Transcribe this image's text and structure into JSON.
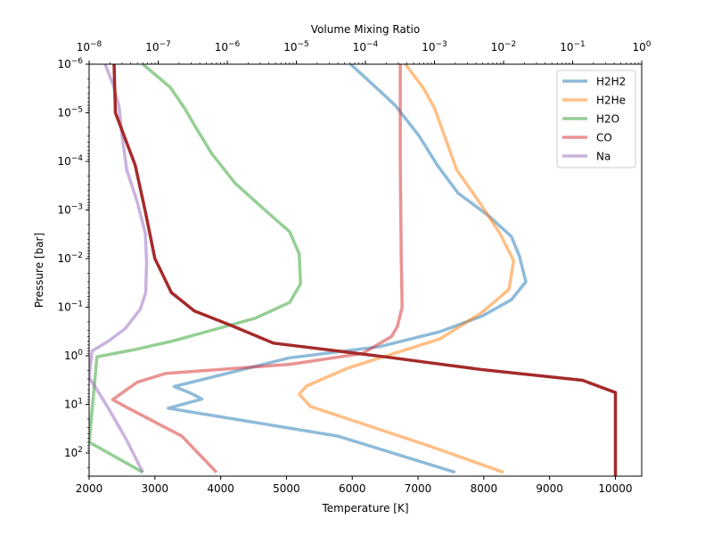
{
  "chart_data": {
    "type": "line",
    "title": "",
    "bottom_axis": {
      "label": "Temperature [K]",
      "range": [
        2000,
        10400
      ],
      "ticks": [
        2000,
        3000,
        4000,
        5000,
        6000,
        7000,
        8000,
        9000,
        10000
      ],
      "tick_labels": [
        "2000",
        "3000",
        "4000",
        "5000",
        "6000",
        "7000",
        "8000",
        "9000",
        "10000"
      ]
    },
    "top_axis": {
      "label": "Volume Mixing Ratio",
      "scale": "log",
      "range": [
        1e-08,
        1
      ],
      "ticks": [
        1e-08,
        1e-07,
        1e-06,
        1e-05,
        0.0001,
        0.001,
        0.01,
        0.1,
        1
      ],
      "tick_labels": [
        {
          "base": "10",
          "exp": "−8"
        },
        {
          "base": "10",
          "exp": "−7"
        },
        {
          "base": "10",
          "exp": "−6"
        },
        {
          "base": "10",
          "exp": "−5"
        },
        {
          "base": "10",
          "exp": "−4"
        },
        {
          "base": "10",
          "exp": "−3"
        },
        {
          "base": "10",
          "exp": "−2"
        },
        {
          "base": "10",
          "exp": "−1"
        },
        {
          "base": "10",
          "exp": "0"
        }
      ]
    },
    "y_axis": {
      "label": "Pressure [bar]",
      "scale": "log",
      "inverted": true,
      "range": [
        1e-06,
        300
      ],
      "ticks": [
        1e-06,
        1e-05,
        0.0001,
        0.001,
        0.01,
        0.1,
        1,
        10,
        100
      ],
      "tick_labels": [
        {
          "base": "10",
          "exp": "−6"
        },
        {
          "base": "10",
          "exp": "−5"
        },
        {
          "base": "10",
          "exp": "−4"
        },
        {
          "base": "10",
          "exp": "−3"
        },
        {
          "base": "10",
          "exp": "−2"
        },
        {
          "base": "10",
          "exp": "−1"
        },
        {
          "base": "10",
          "exp": "0"
        },
        {
          "base": "10",
          "exp": "1"
        },
        {
          "base": "10",
          "exp": "2"
        }
      ]
    },
    "grid": false,
    "legend_placement": "top-right",
    "series": [
      {
        "name": "H2H2",
        "color": "#1f77b4",
        "opacity": 0.5,
        "axis": "top",
        "points": [
          [
            6.1e-05,
            1e-06
          ],
          [
            0.00016,
            3.5e-06
          ],
          [
            0.00027,
            7e-06
          ],
          [
            0.0006,
            3e-05
          ],
          [
            0.0011,
            0.00012
          ],
          [
            0.0022,
            0.00045
          ],
          [
            0.006,
            0.0013
          ],
          [
            0.013,
            0.0035
          ],
          [
            0.017,
            0.009
          ],
          [
            0.021,
            0.03
          ],
          [
            0.013,
            0.07
          ],
          [
            0.005,
            0.15
          ],
          [
            0.0012,
            0.32
          ],
          [
            0.00016,
            0.65
          ],
          [
            8e-06,
            1.1
          ],
          [
            1.7e-07,
            4.3
          ],
          [
            2.9e-07,
            5.8
          ],
          [
            4.3e-07,
            7.8
          ],
          [
            1.4e-07,
            12
          ],
          [
            4e-05,
            45
          ],
          [
            0.002,
            250
          ]
        ]
      },
      {
        "name": "H2He",
        "color": "#ff7f0e",
        "opacity": 0.5,
        "axis": "top",
        "points": [
          [
            0.00038,
            1e-06
          ],
          [
            0.0007,
            3.2e-06
          ],
          [
            0.001,
            8e-06
          ],
          [
            0.0014,
            3e-05
          ],
          [
            0.0021,
            0.00015
          ],
          [
            0.0045,
            0.0007
          ],
          [
            0.0088,
            0.003
          ],
          [
            0.014,
            0.011
          ],
          [
            0.012,
            0.043
          ],
          [
            0.0048,
            0.13
          ],
          [
            0.0012,
            0.45
          ],
          [
            5.5e-05,
            1.8
          ],
          [
            1.4e-05,
            4.2
          ],
          [
            1.1e-05,
            6.2
          ],
          [
            1.6e-05,
            11
          ],
          [
            0.0008,
            70
          ],
          [
            0.01,
            250
          ]
        ]
      },
      {
        "name": "H2O",
        "color": "#2ca02c",
        "opacity": 0.5,
        "axis": "top",
        "points": [
          [
            6e-08,
            1e-06
          ],
          [
            1.5e-07,
            3e-06
          ],
          [
            2.4e-07,
            8e-06
          ],
          [
            3.5e-07,
            2e-05
          ],
          [
            6e-07,
            7e-05
          ],
          [
            1.3e-06,
            0.00028
          ],
          [
            3.5e-06,
            0.001
          ],
          [
            8e-06,
            0.0028
          ],
          [
            1.1e-05,
            0.008
          ],
          [
            1.15e-05,
            0.033
          ],
          [
            8e-06,
            0.08
          ],
          [
            2.5e-06,
            0.17
          ],
          [
            5e-07,
            0.32
          ],
          [
            1.6e-07,
            0.5
          ],
          [
            4.5e-08,
            0.75
          ],
          [
            1.3e-08,
            1.05
          ],
          [
            1e-08,
            60
          ],
          [
            6e-08,
            250
          ]
        ]
      },
      {
        "name": "CO",
        "color": "#d62728",
        "opacity": 0.5,
        "axis": "top",
        "points": [
          [
            0.00032,
            1e-06
          ],
          [
            0.00032,
            0.0001
          ],
          [
            0.00033,
            0.01
          ],
          [
            0.00034,
            0.1
          ],
          [
            0.00029,
            0.25
          ],
          [
            0.00024,
            0.4
          ],
          [
            9e-05,
            0.9
          ],
          [
            8e-06,
            1.5
          ],
          [
            1.3e-07,
            2.3
          ],
          [
            5e-08,
            3.5
          ],
          [
            2.9e-08,
            6
          ],
          [
            2.2e-08,
            8
          ],
          [
            3.7e-08,
            12
          ],
          [
            2.2e-07,
            45
          ],
          [
            7e-07,
            250
          ]
        ]
      },
      {
        "name": "Na",
        "color": "#9467bd",
        "opacity": 0.5,
        "axis": "top",
        "points": [
          [
            1.7e-08,
            1e-06
          ],
          [
            2.2e-08,
            2.5e-06
          ],
          [
            2.7e-08,
            7e-06
          ],
          [
            3e-08,
            3e-05
          ],
          [
            3.5e-08,
            0.00015
          ],
          [
            5e-08,
            0.0007
          ],
          [
            6.5e-08,
            0.003
          ],
          [
            6.8e-08,
            0.012
          ],
          [
            6.6e-08,
            0.05
          ],
          [
            5.5e-08,
            0.11
          ],
          [
            3.3e-08,
            0.28
          ],
          [
            1.9e-08,
            0.5
          ],
          [
            1.1e-08,
            0.8
          ],
          [
            1e-08,
            2.8
          ],
          [
            1.3e-08,
            5
          ],
          [
            1.9e-08,
            12
          ],
          [
            3.5e-08,
            55
          ],
          [
            6e-08,
            250
          ]
        ]
      },
      {
        "name": "",
        "color": "#a52a2a",
        "opacity": 1,
        "axis": "bottom",
        "points": [
          [
            2380,
            1e-06
          ],
          [
            2400,
            1e-05
          ],
          [
            2700,
            0.00012
          ],
          [
            2850,
            0.001
          ],
          [
            3000,
            0.01
          ],
          [
            3250,
            0.05
          ],
          [
            3600,
            0.12
          ],
          [
            4200,
            0.25
          ],
          [
            4800,
            0.55
          ],
          [
            6500,
            1.05
          ],
          [
            8000,
            1.95
          ],
          [
            9500,
            3.2
          ],
          [
            10000,
            5.7
          ],
          [
            10000,
            300
          ]
        ]
      }
    ]
  }
}
